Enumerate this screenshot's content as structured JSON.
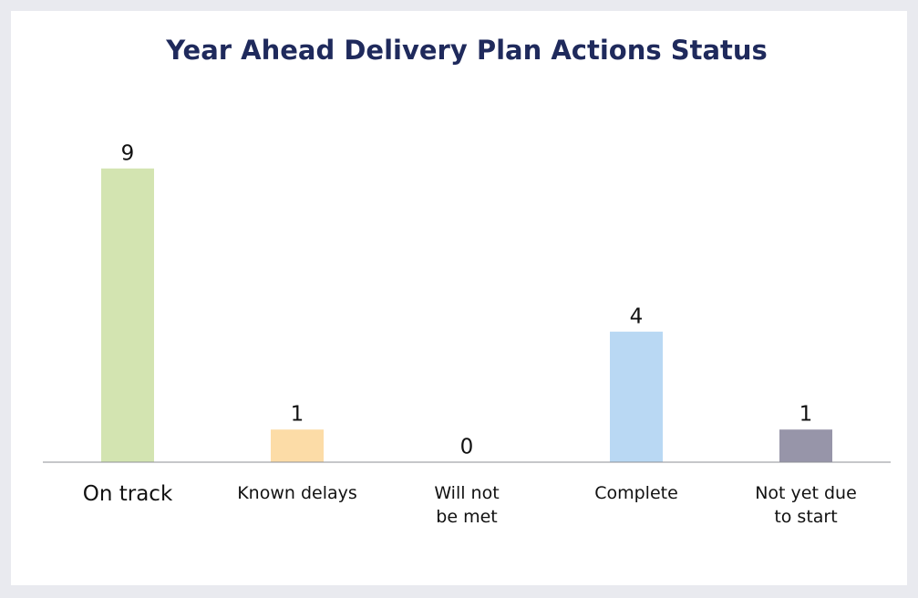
{
  "chart_data": {
    "type": "bar",
    "title": "Year Ahead Delivery Plan Actions Status",
    "categories": [
      "On track",
      "Known delays",
      "Will not be met",
      "Complete",
      "Not yet due to start"
    ],
    "values": [
      9,
      1,
      0,
      4,
      1
    ],
    "colors": [
      "#d3e4b1",
      "#fcdca7",
      "#f6c0c0",
      "#b9d8f3",
      "#9795a9"
    ],
    "ylim": [
      0,
      10
    ]
  }
}
